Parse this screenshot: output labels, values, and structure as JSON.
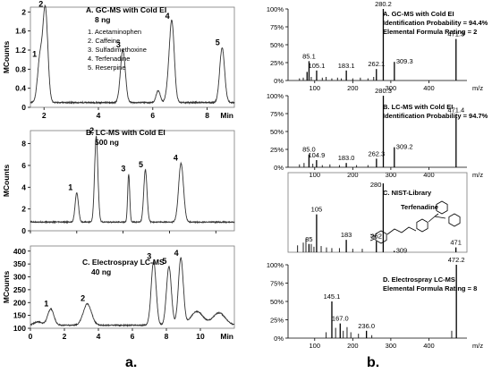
{
  "panel_labels": [
    "a.",
    "b."
  ],
  "unit_labels": {
    "mcounts": "MCounts",
    "min": "Min",
    "mz": "m/z"
  },
  "chart_data": [
    {
      "type": "line",
      "title": "A. GC-MS with Cold EI",
      "subtitle": "8 ng",
      "legend": [
        "1. Acetaminophen",
        "2. Caffeine",
        "3. Sulfadimethoxine",
        "4. Terfenadine",
        "5. Reserpine"
      ],
      "xlabel": "Min",
      "ylabel": "MCounts",
      "xlim": [
        1.5,
        9
      ],
      "ylim": [
        0,
        2.1
      ],
      "xticks": [
        2,
        4,
        6,
        8
      ],
      "yticks": [
        0,
        0.4,
        0.8,
        1.2,
        1.6,
        2
      ],
      "ytick_labels": [
        "0",
        "0.4",
        "0.8",
        "1.2",
        "1.6",
        "2"
      ],
      "baseline": 0.1,
      "peaks": [
        {
          "label": "1",
          "x": 1.85,
          "y": 1.0,
          "w": 0.012
        },
        {
          "label": "2",
          "x": 2.05,
          "y": 2.05,
          "w": 0.012
        },
        {
          "label": "3",
          "x": 4.9,
          "y": 1.2,
          "w": 0.012
        },
        {
          "label": "4",
          "x": 6.7,
          "y": 1.8,
          "w": 0.012
        },
        {
          "label": "5",
          "x": 8.55,
          "y": 1.25,
          "w": 0.012
        }
      ],
      "minor_peaks": [
        {
          "x": 6.2,
          "y": 0.35,
          "w": 0.01
        },
        {
          "x": 6.55,
          "y": 0.3,
          "w": 0.01
        }
      ]
    },
    {
      "type": "line",
      "title": "B. LC-MS with Cold EI",
      "subtitle": "500 ng",
      "xlabel": "",
      "ylabel": "MCounts",
      "xlim": [
        0,
        4.4
      ],
      "ylim": [
        0,
        9.2
      ],
      "xticks": [
        0,
        1,
        2,
        3,
        4
      ],
      "yticks": [
        0,
        2,
        4,
        6,
        8
      ],
      "ytick_labels": [
        "0",
        "2",
        "4",
        "6",
        "8"
      ],
      "baseline": 0.8,
      "peaks": [
        {
          "label": "1",
          "x": 1.0,
          "y": 3.5,
          "w": 0.008
        },
        {
          "label": "2",
          "x": 1.42,
          "y": 8.7,
          "w": 0.008
        },
        {
          "label": "3",
          "x": 2.12,
          "y": 5.2,
          "w": 0.005
        },
        {
          "label": "5",
          "x": 2.48,
          "y": 5.6,
          "w": 0.008
        },
        {
          "label": "4",
          "x": 3.25,
          "y": 6.2,
          "w": 0.012
        }
      ],
      "minor_peaks": []
    },
    {
      "type": "line",
      "title": "C. Electrospray LC-MS",
      "subtitle": "40 ng",
      "xlabel": "Min",
      "ylabel": "MCounts",
      "xlim": [
        0,
        12
      ],
      "ylim": [
        100,
        420
      ],
      "xticks": [
        0,
        2,
        4,
        6,
        8,
        10
      ],
      "yticks": [
        100,
        150,
        200,
        250,
        300,
        350,
        400
      ],
      "ytick_labels": [
        "100",
        "150",
        "200",
        "250",
        "300",
        "350",
        "400"
      ],
      "baseline": 112,
      "peaks": [
        {
          "label": "1",
          "x": 1.2,
          "y": 175,
          "w": 0.015
        },
        {
          "label": "2",
          "x": 3.35,
          "y": 195,
          "w": 0.02
        },
        {
          "label": "3",
          "x": 7.25,
          "y": 360,
          "w": 0.012
        },
        {
          "label": "5",
          "x": 8.15,
          "y": 340,
          "w": 0.012
        },
        {
          "label": "4",
          "x": 8.85,
          "y": 372,
          "w": 0.012
        }
      ],
      "minor_peaks": [
        {
          "x": 0.45,
          "y": 125,
          "w": 0.02
        },
        {
          "x": 9.8,
          "y": 165,
          "w": 0.03
        },
        {
          "x": 11.1,
          "y": 160,
          "w": 0.03
        }
      ]
    },
    {
      "type": "bar",
      "title": "A. GC-MS with Cold EI",
      "annotations": [
        "Identification Probability = 94.4%",
        "Elemental Formula Rating = 2"
      ],
      "xlabel": "m/z",
      "xlim": [
        30,
        500
      ],
      "ylim": [
        0,
        100
      ],
      "xticks": [
        100,
        200,
        300,
        400
      ],
      "yticks": [
        0,
        25,
        50,
        75,
        100
      ],
      "ytick_labels": [
        "0%",
        "25%",
        "50%",
        "75%",
        "100%"
      ],
      "peaks": [
        {
          "x": 80.0,
          "y": 12,
          "label": ""
        },
        {
          "x": 85.1,
          "y": 27,
          "label": "85.1"
        },
        {
          "x": 105.1,
          "y": 14,
          "label": "105.1"
        },
        {
          "x": 183.1,
          "y": 14,
          "label": "183.1"
        },
        {
          "x": 262.1,
          "y": 16,
          "label": "262.1"
        },
        {
          "x": 280.2,
          "y": 100,
          "label": "280.2"
        },
        {
          "x": 309.3,
          "y": 26,
          "label": "309.3"
        },
        {
          "x": 471.3,
          "y": 58,
          "label": "471.3"
        }
      ],
      "noise": [
        {
          "x": 60,
          "y": 3
        },
        {
          "x": 70,
          "y": 4
        },
        {
          "x": 91,
          "y": 5
        },
        {
          "x": 120,
          "y": 4
        },
        {
          "x": 130,
          "y": 5
        },
        {
          "x": 145,
          "y": 3
        },
        {
          "x": 160,
          "y": 4
        },
        {
          "x": 170,
          "y": 3
        },
        {
          "x": 200,
          "y": 3
        },
        {
          "x": 220,
          "y": 4
        },
        {
          "x": 240,
          "y": 3
        },
        {
          "x": 255,
          "y": 5
        }
      ]
    },
    {
      "type": "bar",
      "title": "B. LC-MS with Cold EI",
      "annotations": [
        "Identification Probability = 94.7%"
      ],
      "xlabel": "m/z",
      "xlim": [
        30,
        500
      ],
      "ylim": [
        0,
        100
      ],
      "xticks": [
        100,
        200,
        300,
        400
      ],
      "yticks": [
        0,
        25,
        50,
        75,
        100
      ],
      "ytick_labels": [
        "0%",
        "25%",
        "50%",
        "75%",
        "100%"
      ],
      "peaks": [
        {
          "x": 85.0,
          "y": 18,
          "label": "85.0"
        },
        {
          "x": 104.9,
          "y": 10,
          "label": "104.9"
        },
        {
          "x": 183.0,
          "y": 6,
          "label": "183.0"
        },
        {
          "x": 262.3,
          "y": 12,
          "label": "262.3"
        },
        {
          "x": 280.3,
          "y": 100,
          "label": "280.3"
        },
        {
          "x": 309.2,
          "y": 28,
          "label": "309.2"
        },
        {
          "x": 471.4,
          "y": 73,
          "label": "471.4"
        }
      ],
      "noise": [
        {
          "x": 60,
          "y": 4
        },
        {
          "x": 72,
          "y": 6
        },
        {
          "x": 95,
          "y": 5
        },
        {
          "x": 120,
          "y": 3
        },
        {
          "x": 140,
          "y": 4
        },
        {
          "x": 165,
          "y": 3
        },
        {
          "x": 210,
          "y": 3
        },
        {
          "x": 240,
          "y": 3
        }
      ]
    },
    {
      "type": "bar",
      "title": "C. NIST-Library",
      "annotations": [
        "Terfenadine"
      ],
      "xlabel": "",
      "xlim": [
        30,
        500
      ],
      "ylim": [
        0,
        100
      ],
      "peaks": [
        {
          "x": 85,
          "y": 12,
          "label": "85"
        },
        {
          "x": 105,
          "y": 55,
          "label": "105"
        },
        {
          "x": 183,
          "y": 18,
          "label": "183"
        },
        {
          "x": 262,
          "y": 16,
          "label": "262"
        },
        {
          "x": 280,
          "y": 100,
          "label": "280"
        },
        {
          "x": 309,
          "y": 2,
          "label": "309"
        },
        {
          "x": 471,
          "y": 7,
          "label": "471"
        }
      ],
      "noise": [
        {
          "x": 55,
          "y": 10
        },
        {
          "x": 70,
          "y": 14
        },
        {
          "x": 77,
          "y": 20
        },
        {
          "x": 91,
          "y": 12
        },
        {
          "x": 98,
          "y": 8
        },
        {
          "x": 117,
          "y": 9
        },
        {
          "x": 131,
          "y": 7
        },
        {
          "x": 145,
          "y": 6
        },
        {
          "x": 165,
          "y": 6
        },
        {
          "x": 200,
          "y": 5
        },
        {
          "x": 225,
          "y": 5
        }
      ]
    },
    {
      "type": "bar",
      "title": "D. Electrospray LC-MS",
      "annotations": [
        "Elemental Formula Rating = 8"
      ],
      "xlabel": "m/z",
      "xlim": [
        30,
        500
      ],
      "ylim": [
        0,
        100
      ],
      "xticks": [
        100,
        200,
        300,
        400
      ],
      "yticks": [
        0,
        25,
        50,
        75,
        100
      ],
      "ytick_labels": [
        "0%",
        "25%",
        "50%",
        "75%",
        "100%"
      ],
      "peaks": [
        {
          "x": 145.1,
          "y": 50,
          "label": "145.1"
        },
        {
          "x": 167.0,
          "y": 20,
          "label": "167.0"
        },
        {
          "x": 236.0,
          "y": 10,
          "label": "236.0"
        },
        {
          "x": 472.2,
          "y": 100,
          "label": "472.2"
        }
      ],
      "noise": [
        {
          "x": 130,
          "y": 8
        },
        {
          "x": 155,
          "y": 14
        },
        {
          "x": 175,
          "y": 10
        },
        {
          "x": 185,
          "y": 15
        },
        {
          "x": 195,
          "y": 8
        },
        {
          "x": 215,
          "y": 6
        },
        {
          "x": 250,
          "y": 4
        },
        {
          "x": 460,
          "y": 10
        }
      ]
    }
  ]
}
